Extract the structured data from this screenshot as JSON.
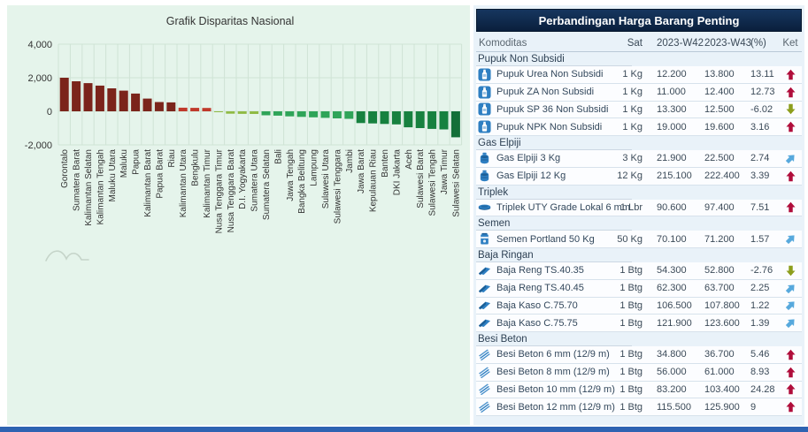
{
  "page": {
    "bottom_bar_color": "#2e63b2"
  },
  "chart": {
    "bg": "#e5f4eb",
    "grid_color": "#cfe3d5",
    "axis_text_color": "#333333",
    "title_color": "#333333",
    "watermark_color": "#c5d4c9"
  },
  "chart_data": {
    "type": "bar",
    "title": "Grafik Disparitas Nasional",
    "xlabel": "",
    "ylabel": "",
    "ylim": [
      -2000,
      4000
    ],
    "yticks": [
      4000,
      2000,
      0,
      -2000
    ],
    "grid": true,
    "legend": "none",
    "categories": [
      "Gorontalo",
      "Sumatera Barat",
      "Kalimantan Selatan",
      "Kalimantan Tengah",
      "Maluku Utara",
      "Maluku",
      "Papua",
      "Kalimantan Barat",
      "Papua Barat",
      "Riau",
      "Kalimantan Utara",
      "Bengkulu",
      "Kalimantan Timur",
      "Nusa Tenggara Timur",
      "Nusa Tenggara Barat",
      "D.I. Yogyakarta",
      "Sumatera Utara",
      "Sumatera Selatan",
      "Bali",
      "Jawa Tengah",
      "Bangka Belitung",
      "Lampung",
      "Sulawesi Utara",
      "Sulawesi Tenggara",
      "Jambi",
      "Jawa Barat",
      "Kepulauan Riau",
      "Banten",
      "DKI Jakarta",
      "Aceh",
      "Sulawesi Barat",
      "Sulawesi Tengah",
      "Jawa Timur",
      "Sulawesi Selatan"
    ],
    "values": [
      2000,
      1790,
      1680,
      1530,
      1370,
      1230,
      1060,
      760,
      550,
      530,
      215,
      205,
      200,
      -55,
      -140,
      -150,
      -160,
      -235,
      -260,
      -300,
      -330,
      -360,
      -390,
      -420,
      -450,
      -700,
      -720,
      -750,
      -780,
      -950,
      -1000,
      -1050,
      -1080,
      -1550
    ],
    "color_stops": [
      {
        "gte": 400,
        "color": "#7b241b"
      },
      {
        "gte": 0,
        "color": "#c0392b"
      },
      {
        "gte": -180,
        "color": "#8fba45"
      },
      {
        "gte": -480,
        "color": "#2fa458"
      },
      {
        "gte": -1200,
        "color": "#17813f"
      },
      {
        "gte": -99999,
        "color": "#136f38"
      }
    ]
  },
  "table": {
    "title": "Perbandingan Harga Barang Penting",
    "columns": [
      "Komoditas",
      "Sat",
      "2023-W42",
      "2023-W43",
      "(%)",
      "Ket"
    ],
    "ket_colors": {
      "up": "#b00d3b",
      "down": "#8d9e1c",
      "up-right": "#57a9dd"
    },
    "icon_color": "#2e7fc2",
    "sections": [
      {
        "label": "Pupuk Non Subsidi",
        "rows": [
          {
            "icon": "fertilizer",
            "name": "Pupuk Urea Non Subsidi",
            "sat": "1 Kg",
            "w42": "12.200",
            "w43": "13.800",
            "pct": "13.11",
            "ket": "up"
          },
          {
            "icon": "fertilizer",
            "name": "Pupuk ZA Non Subsidi",
            "sat": "1 Kg",
            "w42": "11.000",
            "w43": "12.400",
            "pct": "12.73",
            "ket": "up"
          },
          {
            "icon": "fertilizer",
            "name": "Pupuk SP 36 Non Subsidi",
            "sat": "1 Kg",
            "w42": "13.300",
            "w43": "12.500",
            "pct": "-6.02",
            "ket": "down"
          },
          {
            "icon": "fertilizer",
            "name": "Pupuk NPK Non Subsidi",
            "sat": "1 Kg",
            "w42": "19.000",
            "w43": "19.600",
            "pct": "3.16",
            "ket": "up"
          }
        ]
      },
      {
        "label": "Gas Elpiji",
        "rows": [
          {
            "icon": "gas-cylinder",
            "name": "Gas Elpiji 3 Kg",
            "sat": "3 Kg",
            "w42": "21.900",
            "w43": "22.500",
            "pct": "2.74",
            "ket": "up-right"
          },
          {
            "icon": "gas-cylinder",
            "name": "Gas Elpiji 12 Kg",
            "sat": "12 Kg",
            "w42": "215.100",
            "w43": "222.400",
            "pct": "3.39",
            "ket": "up"
          }
        ]
      },
      {
        "label": "Triplek",
        "rows": [
          {
            "icon": "plywood",
            "name": "Triplek UTY Grade Lokal 6 mm",
            "sat": "1 Lbr",
            "w42": "90.600",
            "w43": "97.400",
            "pct": "7.51",
            "ket": "up"
          }
        ]
      },
      {
        "label": "Semen",
        "rows": [
          {
            "icon": "cement-bag",
            "name": "Semen Portland 50 Kg",
            "sat": "50 Kg",
            "w42": "70.100",
            "w43": "71.200",
            "pct": "1.57",
            "ket": "up-right"
          }
        ]
      },
      {
        "label": "Baja Ringan",
        "rows": [
          {
            "icon": "steel-profile",
            "name": "Baja Reng TS.40.35",
            "sat": "1 Btg",
            "w42": "54.300",
            "w43": "52.800",
            "pct": "-2.76",
            "ket": "down"
          },
          {
            "icon": "steel-profile",
            "name": "Baja Reng TS.40.45",
            "sat": "1 Btg",
            "w42": "62.300",
            "w43": "63.700",
            "pct": "2.25",
            "ket": "up-right"
          },
          {
            "icon": "steel-profile",
            "name": "Baja Kaso C.75.70",
            "sat": "1 Btg",
            "w42": "106.500",
            "w43": "107.800",
            "pct": "1.22",
            "ket": "up-right"
          },
          {
            "icon": "steel-profile",
            "name": "Baja Kaso C.75.75",
            "sat": "1 Btg",
            "w42": "121.900",
            "w43": "123.600",
            "pct": "1.39",
            "ket": "up-right"
          }
        ]
      },
      {
        "label": "Besi Beton",
        "rows": [
          {
            "icon": "rebar",
            "name": "Besi Beton 6 mm (12/9 m)",
            "sat": "1 Btg",
            "w42": "34.800",
            "w43": "36.700",
            "pct": "5.46",
            "ket": "up"
          },
          {
            "icon": "rebar",
            "name": "Besi Beton 8 mm (12/9 m)",
            "sat": "1 Btg",
            "w42": "56.000",
            "w43": "61.000",
            "pct": "8.93",
            "ket": "up"
          },
          {
            "icon": "rebar",
            "name": "Besi Beton 10 mm (12/9 m)",
            "sat": "1 Btg",
            "w42": "83.200",
            "w43": "103.400",
            "pct": "24.28",
            "ket": "up"
          },
          {
            "icon": "rebar",
            "name": "Besi Beton 12 mm (12/9 m)",
            "sat": "1 Btg",
            "w42": "115.500",
            "w43": "125.900",
            "pct": "9",
            "ket": "up"
          }
        ]
      }
    ]
  }
}
